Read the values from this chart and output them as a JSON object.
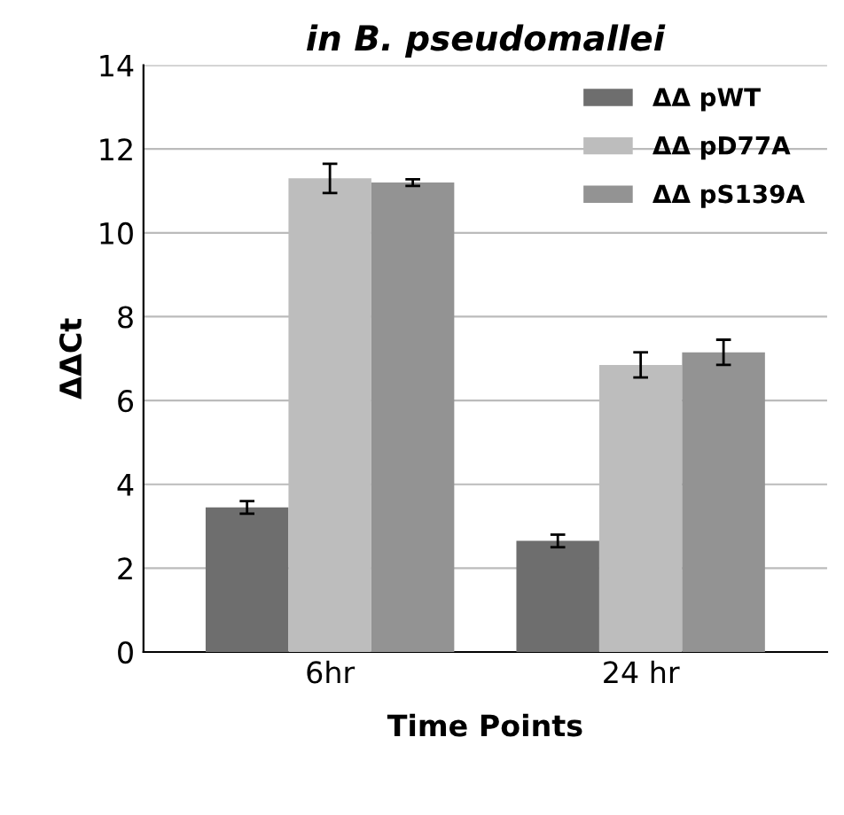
{
  "chart_data": {
    "type": "bar",
    "title": "in B. pseudomallei",
    "xlabel": "Time Points",
    "ylabel": "ΔΔCt",
    "categories": [
      "6hr",
      "24 hr"
    ],
    "series": [
      {
        "name": "ΔΔ pWT",
        "color": "#6e6e6e",
        "values": [
          3.45,
          2.65
        ],
        "errors": [
          0.15,
          0.15
        ]
      },
      {
        "name": "ΔΔ pD77A",
        "color": "#bdbdbd",
        "values": [
          11.3,
          6.85
        ],
        "errors": [
          0.35,
          0.3
        ]
      },
      {
        "name": "ΔΔ pS139A",
        "color": "#939393",
        "values": [
          11.2,
          7.15
        ],
        "errors": [
          0.08,
          0.3
        ]
      }
    ],
    "ylim": [
      0,
      14
    ],
    "yticks": [
      0,
      2,
      4,
      6,
      8,
      10,
      12,
      14
    ],
    "grid": "y",
    "legend": "top right"
  }
}
